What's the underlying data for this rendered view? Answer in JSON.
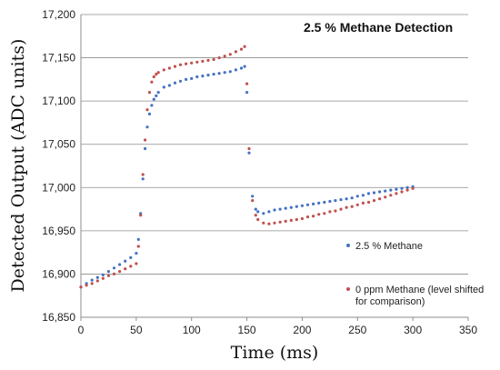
{
  "chart_data": {
    "type": "scatter",
    "title": "2.5 % Methane Detection",
    "xlabel": "Time (ms)",
    "ylabel": "Detected Output (ADC units)",
    "xlim": [
      0,
      350
    ],
    "ylim": [
      16850,
      17200
    ],
    "xticks": [
      0,
      50,
      100,
      150,
      200,
      250,
      300,
      350
    ],
    "yticks": [
      16850,
      16900,
      16950,
      17000,
      17050,
      17100,
      17150,
      17200
    ],
    "xtick_labels": [
      "0",
      "50",
      "100",
      "150",
      "200",
      "250",
      "300",
      "350"
    ],
    "ytick_labels": [
      "16,850",
      "16,900",
      "16,950",
      "17,000",
      "17,050",
      "17,100",
      "17,150",
      "17,200"
    ],
    "grid": "horizontal",
    "legend_position": "center-right",
    "series": [
      {
        "name": "2.5 % Methane",
        "color": "#4472C4",
        "x": [
          0,
          5,
          10,
          15,
          20,
          25,
          30,
          35,
          40,
          45,
          50,
          52,
          54,
          56,
          58,
          60,
          62,
          64,
          66,
          68,
          70,
          75,
          80,
          85,
          90,
          95,
          100,
          105,
          110,
          115,
          120,
          125,
          130,
          135,
          140,
          145,
          148,
          150,
          152,
          155,
          158,
          160,
          165,
          170,
          175,
          180,
          185,
          190,
          195,
          200,
          205,
          210,
          215,
          220,
          225,
          230,
          235,
          240,
          245,
          250,
          255,
          260,
          265,
          270,
          275,
          280,
          285,
          290,
          295,
          300
        ],
        "y": [
          16885,
          16889,
          16893,
          16896,
          16899,
          16903,
          16907,
          16911,
          16915,
          16919,
          16924,
          16940,
          16970,
          17010,
          17045,
          17070,
          17085,
          17095,
          17102,
          17106,
          17110,
          17116,
          17118,
          17121,
          17123,
          17125,
          17126,
          17128,
          17129,
          17130,
          17131,
          17132,
          17133,
          17134,
          17136,
          17138,
          17140,
          17110,
          17040,
          16990,
          16975,
          16972,
          16970,
          16972,
          16974,
          16975,
          16976,
          16977,
          16978,
          16979,
          16980,
          16981,
          16982,
          16983,
          16984,
          16985,
          16986,
          16987,
          16988,
          16990,
          16991,
          16993,
          16994,
          16995,
          16996,
          16997,
          16998,
          16999,
          17000,
          17001
        ]
      },
      {
        "name": "0 ppm Methane (level shifted for comparison)",
        "color": "#C0504D",
        "x": [
          0,
          5,
          10,
          15,
          20,
          25,
          30,
          35,
          40,
          45,
          50,
          52,
          54,
          56,
          58,
          60,
          62,
          64,
          66,
          68,
          70,
          75,
          80,
          85,
          90,
          95,
          100,
          105,
          110,
          115,
          120,
          125,
          130,
          135,
          140,
          145,
          148,
          150,
          152,
          155,
          158,
          160,
          165,
          170,
          175,
          180,
          185,
          190,
          195,
          200,
          205,
          210,
          215,
          220,
          225,
          230,
          235,
          240,
          245,
          250,
          255,
          260,
          265,
          270,
          275,
          280,
          285,
          290,
          295,
          300
        ],
        "y": [
          16885,
          16887,
          16889,
          16892,
          16895,
          16898,
          16900,
          16903,
          16906,
          16909,
          16912,
          16932,
          16968,
          17015,
          17055,
          17090,
          17110,
          17122,
          17128,
          17131,
          17133,
          17136,
          17138,
          17140,
          17142,
          17143,
          17144,
          17145,
          17146,
          17147,
          17148,
          17150,
          17152,
          17154,
          17157,
          17160,
          17163,
          17120,
          17045,
          16985,
          16968,
          16963,
          16959,
          16958,
          16959,
          16960,
          16961,
          16962,
          16963,
          16964,
          16966,
          16967,
          16969,
          16970,
          16972,
          16973,
          16975,
          16977,
          16978,
          16980,
          16982,
          16983,
          16985,
          16987,
          16989,
          16991,
          16993,
          16995,
          16997,
          16999
        ]
      }
    ]
  }
}
